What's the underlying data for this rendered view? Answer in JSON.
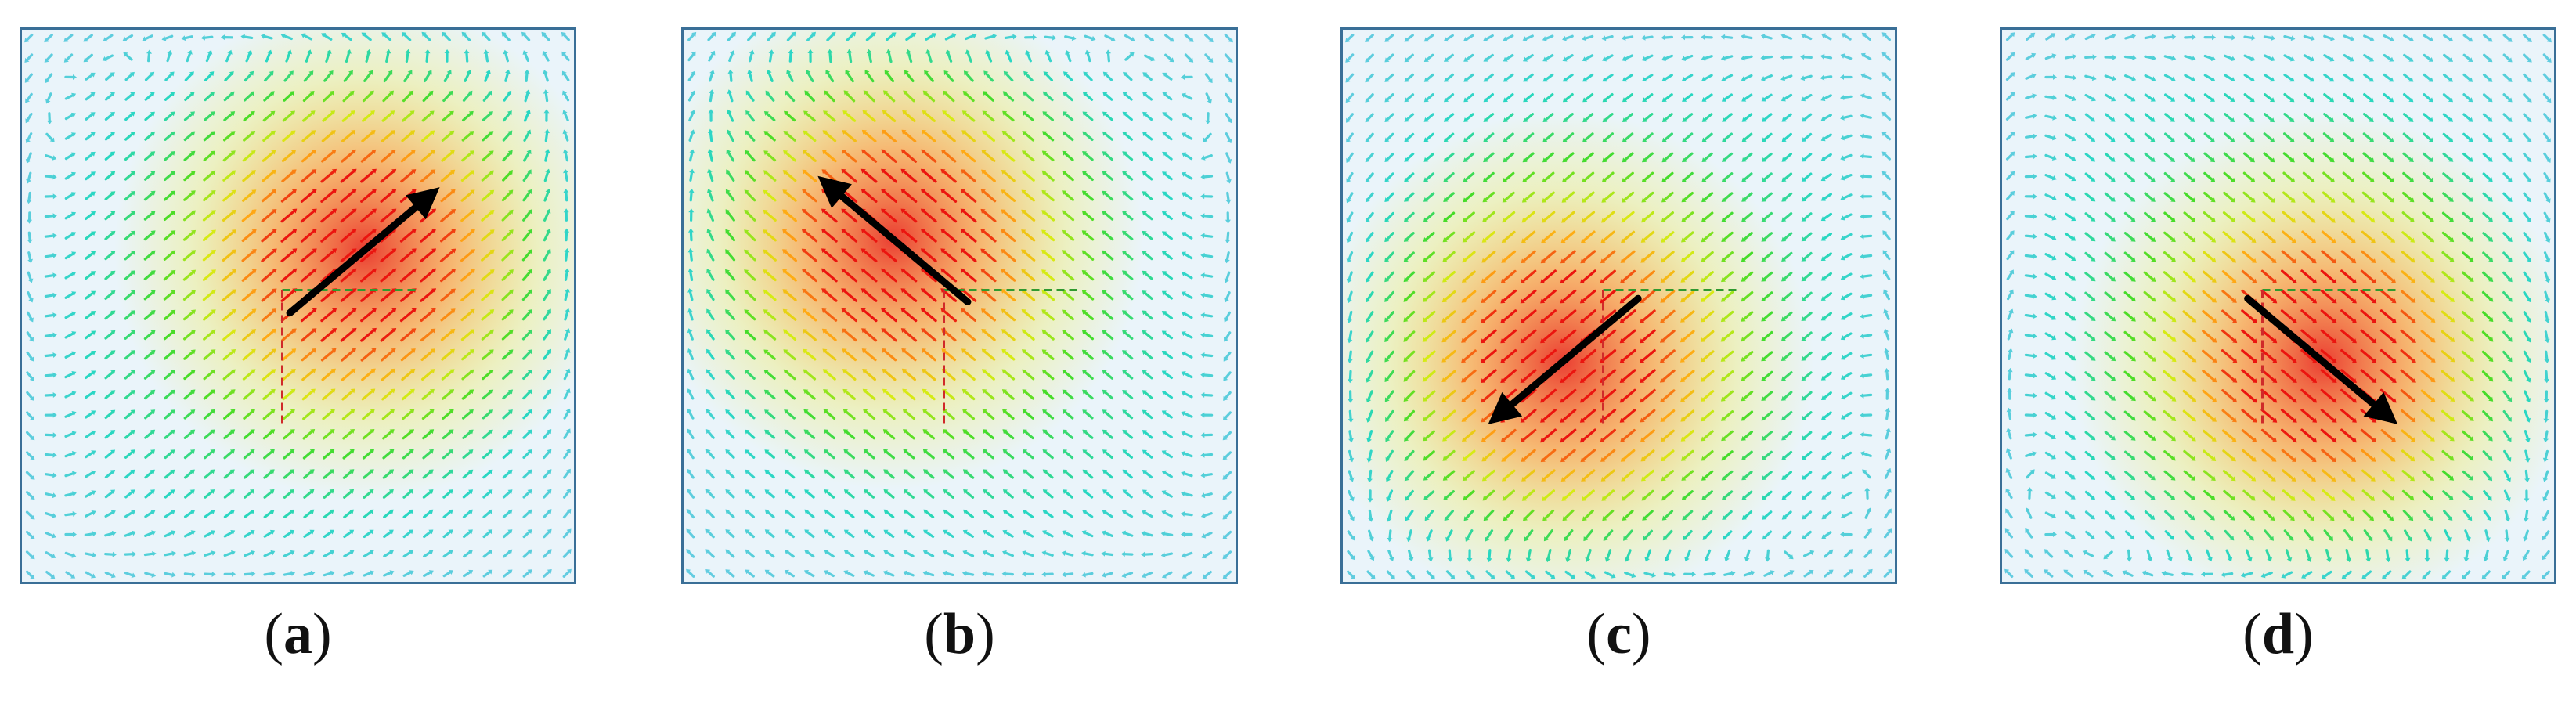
{
  "colors": {
    "background": "#eaf4fa",
    "frame": "#3a6f97",
    "arrow": "#000000"
  },
  "panels": [
    {
      "id": "a",
      "open": "(",
      "letter": "a",
      "close": ")",
      "hot_x": 0.62,
      "hot_y": 0.4,
      "dir_deg": -40
    },
    {
      "id": "b",
      "open": "(",
      "letter": "b",
      "close": ")",
      "hot_x": 0.38,
      "hot_y": 0.38,
      "dir_deg": -140
    },
    {
      "id": "c",
      "open": "(",
      "letter": "c",
      "close": ")",
      "hot_x": 0.4,
      "hot_y": 0.6,
      "dir_deg": 140
    },
    {
      "id": "d",
      "open": "(",
      "letter": "d",
      "close": ")",
      "hot_x": 0.58,
      "hot_y": 0.6,
      "dir_deg": 40
    }
  ]
}
